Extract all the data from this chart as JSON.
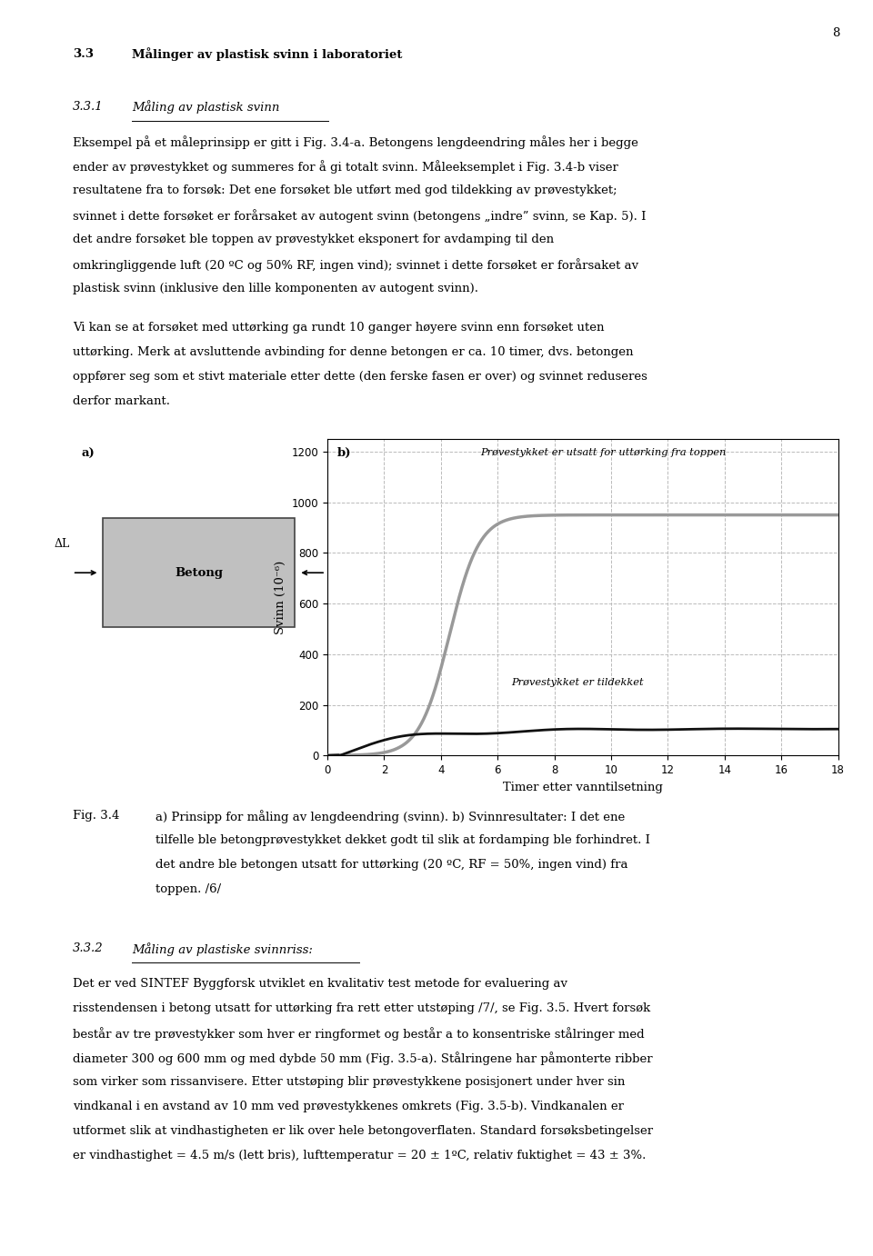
{
  "page_number": "8",
  "heading_bold": "3.3",
  "heading_text": "Målinger av plastisk svinn i laboratoriet",
  "subheading_num": "3.3.1",
  "subheading_text": "Måling av plastisk svinn",
  "fig_label_a": "a)",
  "fig_label_b": "b)",
  "fig_betong": "Betong",
  "fig_b_annotation_top": "Prøvestykket er utsatt for uttørking fra toppen",
  "fig_b_annotation_bottom": "Prøvestykket er tildekket",
  "ylabel": "Svinn (10⁻⁶)",
  "xlabel": "Timer etter vanntilsetning",
  "yticks": [
    0,
    200,
    400,
    600,
    800,
    1000,
    1200
  ],
  "xticks": [
    0,
    2,
    4,
    6,
    8,
    10,
    12,
    14,
    16,
    18
  ],
  "ylim": [
    0,
    1250
  ],
  "xlim": [
    0,
    18
  ],
  "fig_caption_label": "Fig. 3.4",
  "line_exposed_color": "#999999",
  "line_covered_color": "#111111",
  "background_color": "#ffffff",
  "grid_color": "#bbbbbb",
  "text_color": "#000000",
  "para1_lines": [
    "Eksempel på et måleprinsipp er gitt i Fig. 3.4-a. Betongens lengdeendring måles her i begge",
    "ender av prøvestykket og summeres for å gi totalt svinn. Måleeksemplet i Fig. 3.4-b viser",
    "resultatene fra to forsøk: Det ene forsøket ble utført med god tildekking av prøvestykket;",
    "svinnet i dette forsøket er forårsaket av autogent svinn (betongens „indre” svinn, se Kap. 5). I",
    "det andre forsøket ble toppen av prøvestykket eksponert for avdamping til den",
    "omkringliggende luft (20 ºC og 50% RF, ingen vind); svinnet i dette forsøket er forårsaket av",
    "plastisk svinn (inklusive den lille komponenten av autogent svinn)."
  ],
  "para2_lines": [
    "Vi kan se at forsøket med uttørking ga rundt 10 ganger høyere svinn enn forsøket uten",
    "uttørking. Merk at avsluttende avbinding for denne betongen er ca. 10 timer, dvs. betongen",
    "oppfører seg som et stivt materiale etter dette (den ferske fasen er over) og svinnet reduseres",
    "derfor markant."
  ],
  "fig_cap_lines": [
    [
      "Fig. 3.4",
      "a) Prinsipp for måling av lengdeendring (svinn). b) Svinnresultater: I det ene"
    ],
    [
      "",
      "tilfelle ble betongprøvestykket dekket godt til slik at fordamping ble forhindret. I"
    ],
    [
      "",
      "det andre ble betongen utsatt for uttørking (20 ºC, RF = 50%, ingen vind) fra"
    ],
    [
      "",
      "toppen. /6/"
    ]
  ],
  "subheading2_num": "3.3.2",
  "subheading2_text": "Måling av plastiske svinnriss:",
  "para3_lines": [
    "Det er ved SINTEF Byggforsk utviklet en kvalitativ test metode for evaluering av",
    "risstendensen i betong utsatt for uttørking fra rett etter utstøping /7/, se Fig. 3.5. Hvert forsøk",
    "består av tre prøvestykker som hver er ringformet og består a to konsentriske stålringer med",
    "diameter 300 og 600 mm og med dybde 50 mm (Fig. 3.5-a). Stålringene har påmonterte ribber",
    "som virker som rissanvisere. Etter utstøping blir prøvestykkene posisjonert under hver sin",
    "vindkanal i en avstand av 10 mm ved prøvestykkenes omkrets (Fig. 3.5-b). Vindkanalen er",
    "utformet slik at vindhastigheten er lik over hele betongoverflaten. Standard forsøksbetingelser",
    "er vindhastighet = 4.5 m/s (lett bris), lufttemperatur = 20 ± 1ºC, relativ fuktighet = 43 ± 3%."
  ]
}
